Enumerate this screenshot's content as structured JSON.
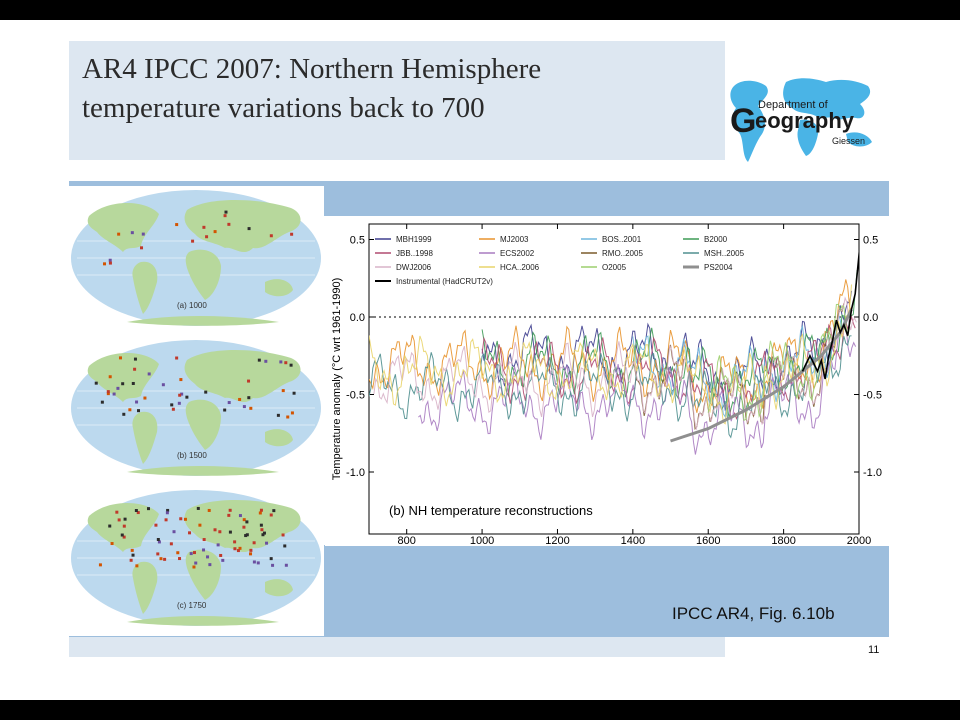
{
  "slide": {
    "title_line1": "AR4 IPCC 2007: Northern Hemisphere",
    "title_line2": "temperature variations back to 700",
    "caption": "IPCC AR4, Fig. 6.10b",
    "page_number": "11"
  },
  "logo": {
    "line1": "Department of",
    "big_letter": "G",
    "line2": "eography",
    "line3": "Giessen",
    "colors": {
      "map": "#4ab4e6",
      "text": "#1a1a1a"
    }
  },
  "maps": [
    {
      "label": "(a) 1000"
    },
    {
      "label": "(b) 1500"
    },
    {
      "label": "(c) 1750"
    }
  ],
  "colors": {
    "band": "#9dbedd",
    "title_band": "#dde7f1",
    "ocean": "#bcd9ee",
    "land": "#b7d89c"
  },
  "chart_data": {
    "type": "line",
    "ylabel": "Temperature anomaly  (°C wrt 1961-1990)",
    "annotation": "(b) NH temperature reconstructions",
    "xlim": [
      700,
      2000
    ],
    "ylim": [
      -1.4,
      0.6
    ],
    "xticks": [
      800,
      1000,
      1200,
      1400,
      1600,
      1800,
      2000
    ],
    "yticks": [
      0.5,
      0.0,
      -0.5,
      -1.0
    ],
    "ytick_labels": [
      "0.5",
      "0.0",
      "-0.5",
      "-1.0"
    ],
    "zero_line": "dotted",
    "legend_placement": "top-left",
    "series": [
      {
        "name": "MBH1999",
        "color": "#3f3f8f",
        "start": 1000,
        "end": 1980,
        "base": -0.25
      },
      {
        "name": "MJ2003",
        "color": "#e8932e",
        "start": 200,
        "end": 1980,
        "base": -0.3
      },
      {
        "name": "BOS..2001",
        "color": "#6fb7dd",
        "start": 1400,
        "end": 1960,
        "base": -0.3
      },
      {
        "name": "B2000",
        "color": "#3d9a55",
        "start": 1000,
        "end": 1995,
        "base": -0.3
      },
      {
        "name": "JBB..1998",
        "color": "#b04b70",
        "start": 1000,
        "end": 1990,
        "base": -0.35
      },
      {
        "name": "ECS2002",
        "color": "#a97bc1",
        "start": 831,
        "end": 1992,
        "base": -0.55
      },
      {
        "name": "RMO..2005",
        "color": "#7a5a2a",
        "start": 1400,
        "end": 1960,
        "base": -0.4
      },
      {
        "name": "MSH..2005",
        "color": "#4f8f8f",
        "start": 700,
        "end": 1980,
        "base": -0.45
      },
      {
        "name": "DWJ2006",
        "color": "#d8b3c8",
        "start": 713,
        "end": 1995,
        "base": -0.4
      },
      {
        "name": "HCA..2006",
        "color": "#e9d46a",
        "start": 700,
        "end": 1980,
        "base": -0.35
      },
      {
        "name": "O2005",
        "color": "#9ccf6e",
        "start": 1600,
        "end": 1975,
        "base": -0.35
      },
      {
        "name": "PS2004",
        "color": "#8f8f8f",
        "start": 1500,
        "end": 1980,
        "type": "smooth",
        "points": [
          [
            1500,
            -0.8
          ],
          [
            1600,
            -0.72
          ],
          [
            1700,
            -0.6
          ],
          [
            1800,
            -0.45
          ],
          [
            1850,
            -0.35
          ],
          [
            1900,
            -0.25
          ],
          [
            1950,
            -0.1
          ],
          [
            1980,
            0.05
          ]
        ]
      },
      {
        "name": "Instrumental (HadCRUT2v)",
        "color": "#000000",
        "start": 1850,
        "end": 2004,
        "type": "instrumental",
        "points": [
          [
            1850,
            -0.35
          ],
          [
            1860,
            -0.3
          ],
          [
            1870,
            -0.25
          ],
          [
            1880,
            -0.3
          ],
          [
            1890,
            -0.35
          ],
          [
            1900,
            -0.28
          ],
          [
            1910,
            -0.4
          ],
          [
            1920,
            -0.25
          ],
          [
            1930,
            -0.15
          ],
          [
            1940,
            -0.02
          ],
          [
            1950,
            -0.1
          ],
          [
            1960,
            -0.05
          ],
          [
            1970,
            -0.12
          ],
          [
            1980,
            0.05
          ],
          [
            1990,
            0.15
          ],
          [
            2000,
            0.4
          ],
          [
            2004,
            0.5
          ]
        ]
      }
    ]
  }
}
